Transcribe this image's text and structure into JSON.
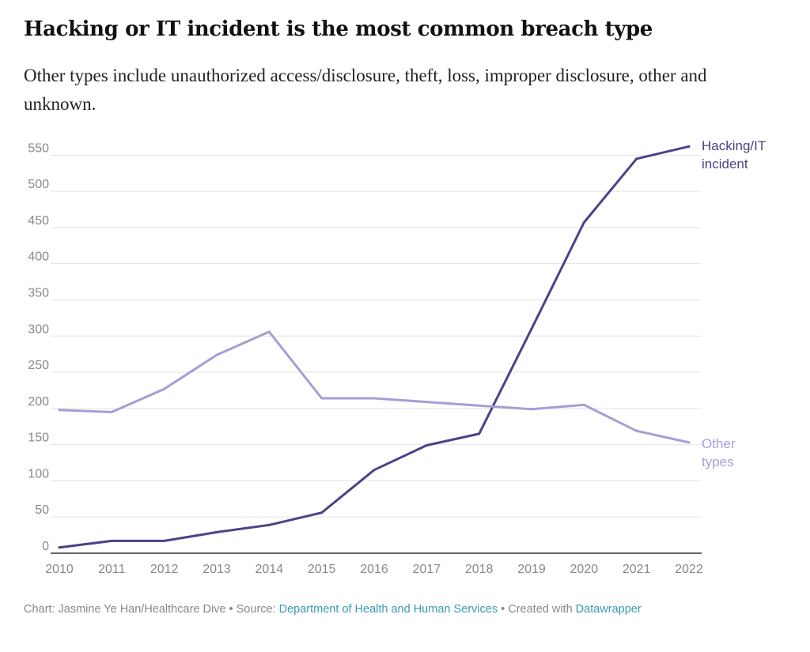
{
  "header": {
    "title": "Hacking or IT incident is the most common breach type",
    "subtitle": "Other types include unauthorized access/disclosure, theft, loss, improper disclosure, other and unknown."
  },
  "chart_data": {
    "type": "line",
    "title": "Hacking or IT incident is the most common breach type",
    "xlabel": "",
    "ylabel": "",
    "x": [
      "2010",
      "2011",
      "2012",
      "2013",
      "2014",
      "2015",
      "2016",
      "2017",
      "2018",
      "2019",
      "2020",
      "2021",
      "2022"
    ],
    "ylim": [
      0,
      570
    ],
    "yticks": [
      0,
      50,
      100,
      150,
      200,
      250,
      300,
      350,
      400,
      450,
      500,
      550
    ],
    "grid": true,
    "series": [
      {
        "name": "Hacking/IT incident",
        "label_lines": [
          "Hacking/IT",
          "incident"
        ],
        "color": "#4a4388",
        "values": [
          8,
          17,
          17,
          29,
          39,
          56,
          115,
          149,
          165,
          310,
          457,
          545,
          562
        ]
      },
      {
        "name": "Other types",
        "label_lines": [
          "Other",
          "types"
        ],
        "color": "#a79ed6",
        "values": [
          198,
          195,
          227,
          274,
          306,
          214,
          214,
          209,
          204,
          199,
          205,
          169,
          153
        ]
      }
    ]
  },
  "footer": {
    "chart_credit": "Chart: Jasmine Ye Han/Healthcare Dive",
    "separator": " • ",
    "source_label": "Source: ",
    "source_link": "Department of Health and Human Services",
    "created_label": "Created with ",
    "created_link": "Datawrapper"
  }
}
